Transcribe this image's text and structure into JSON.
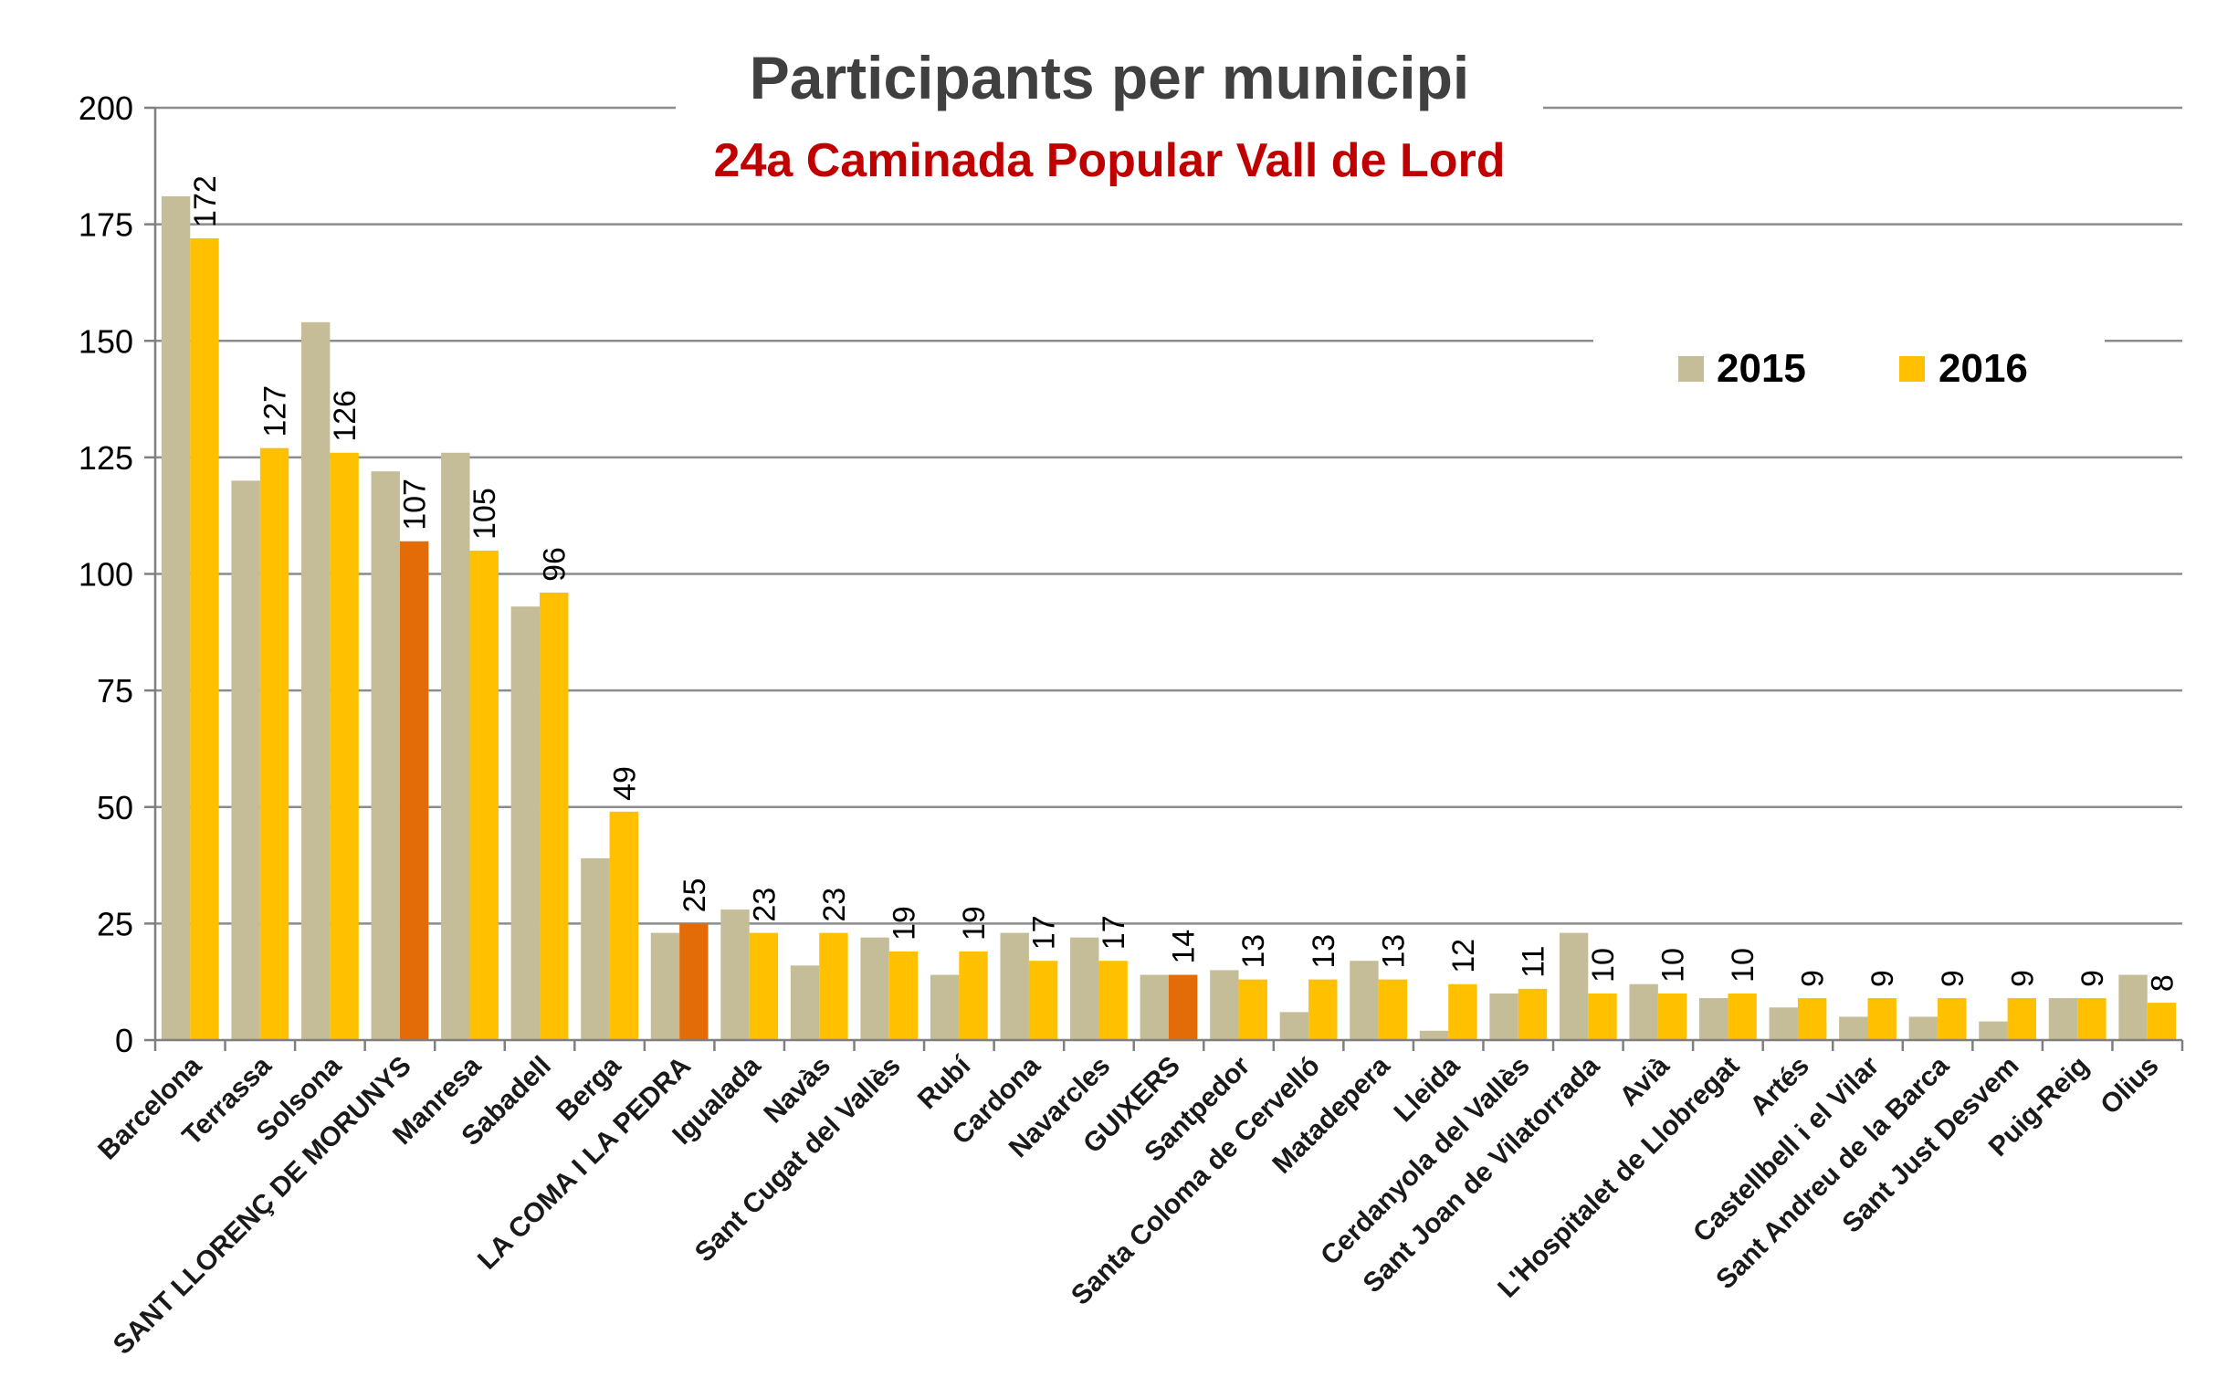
{
  "chart_data": {
    "type": "bar",
    "title": "Participants per municipi",
    "subtitle": "24a Caminada Popular Vall de Lord",
    "ylim": [
      0,
      200
    ],
    "yticks": [
      0,
      25,
      50,
      75,
      100,
      125,
      150,
      175,
      200
    ],
    "grid": true,
    "legend_position": "top-right",
    "categories": [
      "Barcelona",
      "Terrassa",
      "Solsona",
      "SANT LLORENÇ DE MORUNYS",
      "Manresa",
      "Sabadell",
      "Berga",
      "LA COMA I LA PEDRA",
      "Igualada",
      "Navàs",
      "Sant Cugat del Vallès",
      "Rubí",
      "Cardona",
      "Navarcles",
      "GUIXERS",
      "Santpedor",
      "Santa Coloma de Cervelló",
      "Matadepera",
      "Lleida",
      "Cerdanyola del Vallès",
      "Sant Joan de Vilatorrada",
      "Avià",
      "L'Hospitalet de Llobregat",
      "Artés",
      "Castellbell i el Vilar",
      "Sant Andreu de la Barca",
      "Sant Just Desvem",
      "Puig-Reig",
      "Olius"
    ],
    "series": [
      {
        "name": "2015",
        "color": "#C4BD97",
        "values": [
          181,
          120,
          154,
          122,
          126,
          93,
          39,
          23,
          28,
          16,
          22,
          14,
          23,
          22,
          14,
          15,
          6,
          17,
          2,
          10,
          23,
          12,
          9,
          7,
          5,
          5,
          4,
          9,
          14
        ]
      },
      {
        "name": "2016",
        "color": "#FFC000",
        "highlight_color": "#E36C09",
        "highlight_categories": [
          "SANT LLORENÇ DE MORUNYS",
          "LA COMA I LA PEDRA",
          "GUIXERS"
        ],
        "values": [
          172,
          127,
          126,
          107,
          105,
          96,
          49,
          25,
          23,
          23,
          19,
          19,
          17,
          17,
          14,
          13,
          13,
          13,
          12,
          11,
          10,
          10,
          10,
          9,
          9,
          9,
          9,
          9,
          8
        ],
        "data_labels": true
      }
    ]
  }
}
